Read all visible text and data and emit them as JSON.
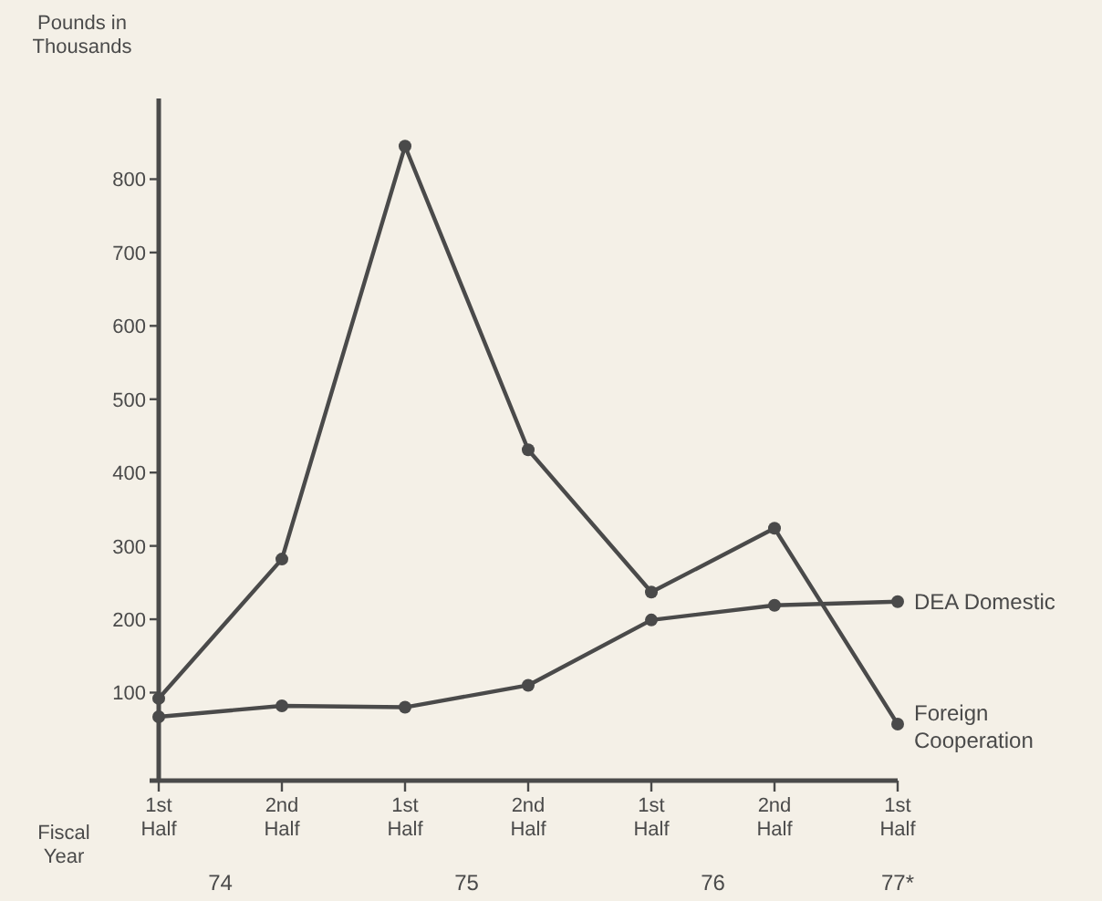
{
  "chart_data": {
    "type": "line",
    "ylabel": "Pounds in Thousands",
    "xlabel": "Fiscal Year",
    "categories": [
      "1st Half",
      "2nd Half",
      "1st Half",
      "2nd Half",
      "1st Half",
      "2nd Half",
      "1st Half"
    ],
    "series": [
      {
        "name": "DEA Domestic",
        "color": "#4a4a4a",
        "values": [
          67,
          82,
          80,
          110,
          199,
          219,
          224
        ]
      },
      {
        "name": "Foreign Cooperation",
        "color": "#4a4a4a",
        "values": [
          92,
          282,
          845,
          431,
          237,
          324,
          57
        ]
      }
    ],
    "ylim": [
      -20,
      910
    ],
    "yticks": [
      100,
      200,
      300,
      400,
      500,
      600,
      700,
      800
    ],
    "marker": "circle",
    "line_style": "solid",
    "legend": false,
    "annotations": [
      "74",
      "75",
      "76",
      "77*"
    ]
  }
}
